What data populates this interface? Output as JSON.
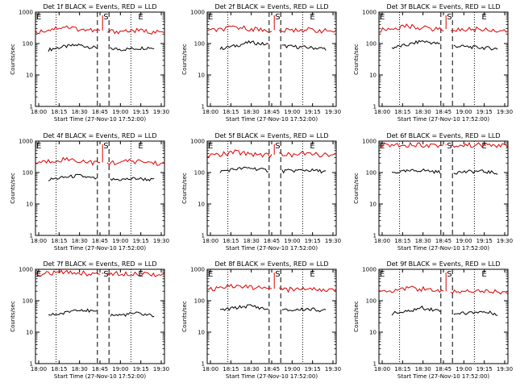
{
  "chart_data": [
    {
      "type": "line",
      "title": "Det 1f BLACK = Events, RED = LLD",
      "xlabel": "Start Time (27-Nov-10 17:52:00)",
      "ylabel": "Counts/sec",
      "yscale": "log",
      "ylim": [
        1,
        1000
      ],
      "x_tick_labels": [
        "18:00",
        "18:15",
        "18:30",
        "18:45",
        "19:00",
        "19:15",
        "19:30"
      ],
      "y_tick_labels": [
        "1",
        "10",
        "100",
        "1000"
      ],
      "markers": [
        "E",
        "S",
        "E"
      ],
      "series": [
        {
          "name": "Events",
          "color": "#000000",
          "values": [
            50,
            65,
            80,
            90,
            75,
            70,
            65,
            70,
            75,
            60
          ]
        },
        {
          "name": "LLD",
          "color": "#dd0000",
          "values": [
            230,
            280,
            350,
            290,
            260,
            240,
            250,
            260,
            240,
            220
          ]
        }
      ]
    },
    {
      "type": "line",
      "title": "Det 2f BLACK = Events, RED = LLD",
      "xlabel": "Start Time (27-Nov-10 17:52:00)",
      "ylabel": "Counts/sec",
      "yscale": "log",
      "ylim": [
        1,
        1000
      ],
      "x_tick_labels": [
        "18:00",
        "18:15",
        "18:30",
        "18:45",
        "19:00",
        "19:15",
        "19:30"
      ],
      "y_tick_labels": [
        "1",
        "10",
        "100",
        "1000"
      ],
      "markers": [
        "E",
        "S",
        "E"
      ],
      "series": [
        {
          "name": "Events",
          "color": "#000000",
          "values": [
            60,
            70,
            85,
            110,
            95,
            85,
            80,
            75,
            70,
            65
          ]
        },
        {
          "name": "LLD",
          "color": "#dd0000",
          "values": [
            250,
            280,
            330,
            300,
            270,
            250,
            270,
            280,
            260,
            240
          ]
        }
      ]
    },
    {
      "type": "line",
      "title": "Det 3f BLACK = Events, RED = LLD",
      "xlabel": "Start Time (27-Nov-10 17:52:00)",
      "ylabel": "Counts/sec",
      "yscale": "log",
      "ylim": [
        1,
        1000
      ],
      "x_tick_labels": [
        "18:00",
        "18:15",
        "18:30",
        "18:45",
        "19:00",
        "19:15",
        "19:30"
      ],
      "y_tick_labels": [
        "1",
        "10",
        "100",
        "1000"
      ],
      "markers": [
        "E",
        "S",
        "E"
      ],
      "series": [
        {
          "name": "Events",
          "color": "#000000",
          "values": [
            60,
            75,
            90,
            120,
            100,
            85,
            80,
            75,
            70,
            60
          ]
        },
        {
          "name": "LLD",
          "color": "#dd0000",
          "values": [
            260,
            300,
            360,
            320,
            290,
            270,
            280,
            290,
            270,
            250
          ]
        }
      ]
    },
    {
      "type": "line",
      "title": "Det 4f BLACK = Events, RED = LLD",
      "xlabel": "Start Time (27-Nov-10 17:52:00)",
      "ylabel": "Counts/sec",
      "yscale": "log",
      "ylim": [
        1,
        1000
      ],
      "x_tick_labels": [
        "18:00",
        "18:15",
        "18:30",
        "18:45",
        "19:00",
        "19:15",
        "19:30"
      ],
      "y_tick_labels": [
        "1",
        "10",
        "100",
        "1000"
      ],
      "markers": [
        "E",
        "S",
        "E"
      ],
      "series": [
        {
          "name": "Events",
          "color": "#000000",
          "values": [
            55,
            60,
            70,
            80,
            65,
            60,
            60,
            65,
            60,
            55
          ]
        },
        {
          "name": "LLD",
          "color": "#dd0000",
          "values": [
            200,
            230,
            270,
            240,
            210,
            200,
            220,
            230,
            210,
            190
          ]
        }
      ]
    },
    {
      "type": "line",
      "title": "Det 5f BLACK = Events, RED = LLD",
      "xlabel": "Start Time (27-Nov-10 17:52:00)",
      "ylabel": "Counts/sec",
      "yscale": "log",
      "ylim": [
        1,
        1000
      ],
      "x_tick_labels": [
        "18:00",
        "18:15",
        "18:30",
        "18:45",
        "19:00",
        "19:15",
        "19:30"
      ],
      "y_tick_labels": [
        "1",
        "10",
        "100",
        "1000"
      ],
      "markers": [
        "E",
        "S",
        "E"
      ],
      "series": [
        {
          "name": "Events",
          "color": "#000000",
          "values": [
            90,
            110,
            130,
            140,
            120,
            110,
            115,
            120,
            110,
            100
          ]
        },
        {
          "name": "LLD",
          "color": "#dd0000",
          "values": [
            350,
            380,
            450,
            400,
            370,
            360,
            380,
            400,
            370,
            340
          ]
        }
      ]
    },
    {
      "type": "line",
      "title": "Det 6f BLACK = Events, RED = LLD",
      "xlabel": "Start Time (27-Nov-10 17:52:00)",
      "ylabel": "Counts/sec",
      "yscale": "log",
      "ylim": [
        1,
        1000
      ],
      "x_tick_labels": [
        "18:00",
        "18:15",
        "18:30",
        "18:45",
        "19:00",
        "19:15",
        "19:30"
      ],
      "y_tick_labels": [
        "1",
        "10",
        "100",
        "1000"
      ],
      "markers": [
        "E",
        "S",
        "E"
      ],
      "series": [
        {
          "name": "Events",
          "color": "#000000",
          "values": [
            90,
            100,
            110,
            120,
            105,
            100,
            105,
            110,
            100,
            90
          ]
        },
        {
          "name": "LLD",
          "color": "#dd0000",
          "values": [
            750,
            760,
            780,
            770,
            740,
            720,
            740,
            760,
            740,
            700
          ]
        }
      ]
    },
    {
      "type": "line",
      "title": "Det 7f BLACK = Events, RED = LLD",
      "xlabel": "Start Time (27-Nov-10 17:52:00)",
      "ylabel": "Counts/sec",
      "yscale": "log",
      "ylim": [
        1,
        1000
      ],
      "x_tick_labels": [
        "18:00",
        "18:15",
        "18:30",
        "18:45",
        "19:00",
        "19:15",
        "19:30"
      ],
      "y_tick_labels": [
        "1",
        "10",
        "100",
        "1000"
      ],
      "markers": [
        "E",
        "S",
        "E"
      ],
      "series": [
        {
          "name": "Events",
          "color": "#000000",
          "values": [
            30,
            35,
            40,
            55,
            45,
            35,
            35,
            40,
            35,
            30
          ]
        },
        {
          "name": "LLD",
          "color": "#dd0000",
          "values": [
            700,
            750,
            800,
            780,
            720,
            700,
            740,
            760,
            720,
            680
          ]
        }
      ]
    },
    {
      "type": "line",
      "title": "Det 8f BLACK = Events, RED = LLD",
      "xlabel": "Start Time (27-Nov-10 17:52:00)",
      "ylabel": "Counts/sec",
      "yscale": "log",
      "ylim": [
        1,
        1000
      ],
      "x_tick_labels": [
        "18:00",
        "18:15",
        "18:30",
        "18:45",
        "19:00",
        "19:15",
        "19:30"
      ],
      "y_tick_labels": [
        "1",
        "10",
        "100",
        "1000"
      ],
      "markers": [
        "E",
        "S",
        "E"
      ],
      "series": [
        {
          "name": "Events",
          "color": "#000000",
          "values": [
            40,
            50,
            60,
            70,
            55,
            50,
            50,
            55,
            50,
            40
          ]
        },
        {
          "name": "LLD",
          "color": "#dd0000",
          "values": [
            220,
            250,
            300,
            270,
            240,
            220,
            230,
            250,
            230,
            210
          ]
        }
      ]
    },
    {
      "type": "line",
      "title": "Det 9f BLACK = Events, RED = LLD",
      "xlabel": "Start Time (27-Nov-10 17:52:00)",
      "ylabel": "Counts/sec",
      "yscale": "log",
      "ylim": [
        1,
        1000
      ],
      "x_tick_labels": [
        "18:00",
        "18:15",
        "18:30",
        "18:45",
        "19:00",
        "19:15",
        "19:30"
      ],
      "y_tick_labels": [
        "1",
        "10",
        "100",
        "1000"
      ],
      "markers": [
        "E",
        "S",
        "E"
      ],
      "series": [
        {
          "name": "Events",
          "color": "#000000",
          "values": [
            30,
            40,
            45,
            60,
            50,
            40,
            40,
            45,
            40,
            35
          ]
        },
        {
          "name": "LLD",
          "color": "#dd0000",
          "values": [
            190,
            220,
            260,
            240,
            200,
            190,
            200,
            220,
            200,
            180
          ]
        }
      ]
    }
  ]
}
